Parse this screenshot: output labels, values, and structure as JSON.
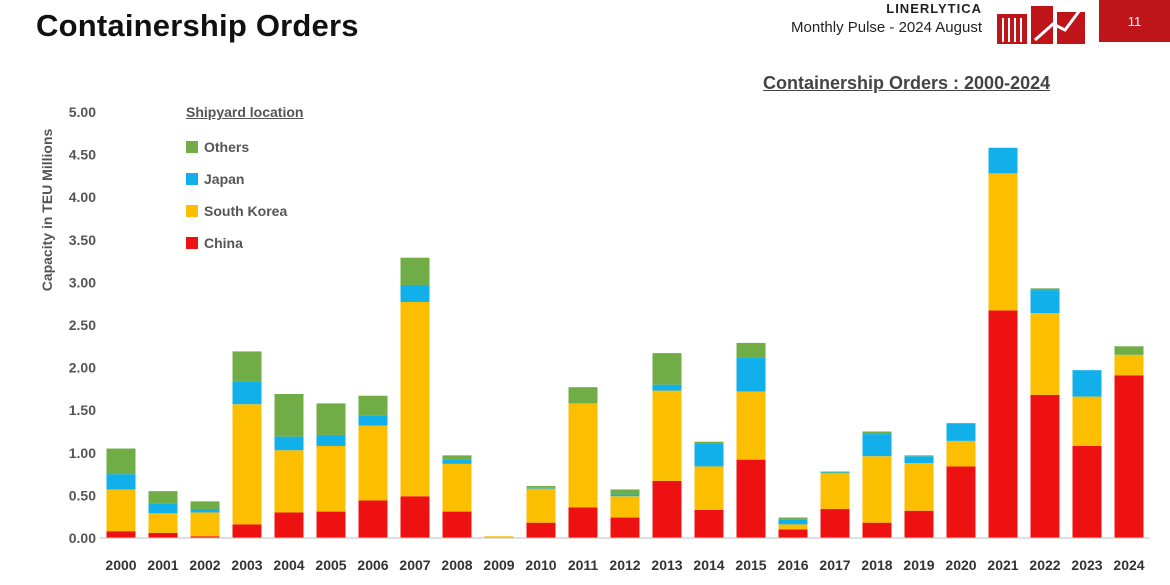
{
  "header": {
    "title": "Containership Orders",
    "brand_name": "LINERLYTICA",
    "brand_subtitle": "Monthly Pulse - 2024 August",
    "page_number": "11",
    "accent_color": "#c0141b"
  },
  "chart_data": {
    "type": "bar",
    "stacked": true,
    "title": "Containership Orders : 2000-2024",
    "xlabel": "",
    "ylabel": "Capacity in TEU Millions",
    "ylim": [
      0,
      5
    ],
    "yticks": [
      "0.00",
      "0.50",
      "1.00",
      "1.50",
      "2.00",
      "2.50",
      "3.00",
      "3.50",
      "4.00",
      "4.50",
      "5.00"
    ],
    "legend_title": "Shipyard location",
    "legend_position": "top-left",
    "categories": [
      "2000",
      "2001",
      "2002",
      "2003",
      "2004",
      "2005",
      "2006",
      "2007",
      "2008",
      "2009",
      "2010",
      "2011",
      "2012",
      "2013",
      "2014",
      "2015",
      "2016",
      "2017",
      "2018",
      "2019",
      "2020",
      "2021",
      "2022",
      "2023",
      "2024"
    ],
    "series": [
      {
        "name": "China",
        "color": "#ee1111",
        "values": [
          0.08,
          0.06,
          0.02,
          0.16,
          0.3,
          0.31,
          0.44,
          0.49,
          0.31,
          0.0,
          0.18,
          0.36,
          0.24,
          0.67,
          0.33,
          0.92,
          0.1,
          0.34,
          0.18,
          0.32,
          0.84,
          2.67,
          1.68,
          1.08,
          1.91
        ]
      },
      {
        "name": "South Korea",
        "color": "#fbbf00",
        "values": [
          0.49,
          0.23,
          0.28,
          1.41,
          0.73,
          0.77,
          0.88,
          2.28,
          0.56,
          0.02,
          0.4,
          1.22,
          0.25,
          1.06,
          0.51,
          0.8,
          0.06,
          0.42,
          0.78,
          0.56,
          0.3,
          1.61,
          0.96,
          0.58,
          0.24
        ]
      },
      {
        "name": "Japan",
        "color": "#12b0ea",
        "values": [
          0.18,
          0.11,
          0.04,
          0.27,
          0.16,
          0.13,
          0.12,
          0.2,
          0.05,
          0.0,
          0.01,
          0.0,
          0.02,
          0.07,
          0.27,
          0.4,
          0.06,
          0.01,
          0.26,
          0.08,
          0.2,
          0.3,
          0.27,
          0.31,
          0.0
        ]
      },
      {
        "name": "Others",
        "color": "#70ad47",
        "values": [
          0.3,
          0.15,
          0.09,
          0.35,
          0.5,
          0.37,
          0.23,
          0.32,
          0.05,
          0.0,
          0.02,
          0.19,
          0.06,
          0.37,
          0.02,
          0.17,
          0.02,
          0.01,
          0.03,
          0.01,
          0.01,
          0.0,
          0.02,
          0.0,
          0.1
        ]
      }
    ],
    "grid": false
  }
}
